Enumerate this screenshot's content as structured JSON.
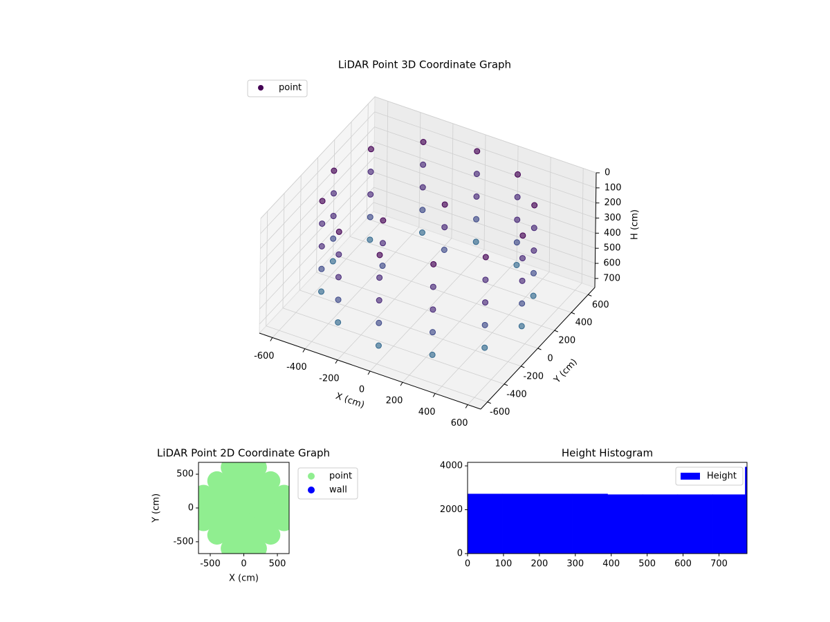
{
  "chart_data": [
    {
      "type": "scatter3d",
      "title": "LiDAR Point 3D Coordinate Graph",
      "xlabel": "X (cm)",
      "ylabel": "Y (cm)",
      "zlabel": "H (cm)",
      "series": [
        {
          "name": "point",
          "color": "#440154",
          "colormap": "viridis",
          "x": [
            580,
            502,
            290,
            0,
            -290,
            -502,
            -580,
            -502,
            -290,
            0,
            290,
            502,
            580,
            502,
            290,
            0,
            -290,
            -502,
            -580,
            -502,
            -290,
            0,
            290,
            502,
            580,
            502,
            290,
            0,
            -290,
            -502,
            -580,
            -502,
            -290,
            0,
            290,
            502,
            580,
            502,
            290,
            0,
            -290,
            -502,
            -580,
            -502,
            -290,
            0,
            290,
            502,
            580,
            502,
            290,
            0,
            -290,
            -502,
            -580,
            -502,
            -290,
            0,
            290,
            502,
            50,
            50,
            50,
            -200,
            -200,
            -200
          ],
          "y": [
            0,
            290,
            502,
            580,
            502,
            290,
            0,
            -290,
            -502,
            -580,
            -502,
            -290,
            0,
            290,
            502,
            580,
            502,
            290,
            0,
            -290,
            -502,
            -580,
            -502,
            -290,
            0,
            290,
            502,
            580,
            502,
            290,
            0,
            -290,
            -502,
            -580,
            -502,
            -290,
            0,
            290,
            502,
            580,
            502,
            290,
            0,
            -290,
            -502,
            -580,
            -502,
            -290,
            0,
            290,
            502,
            580,
            502,
            290,
            0,
            -290,
            -502,
            -580,
            -502,
            -290,
            100,
            100,
            100,
            -150,
            -150,
            -150
          ],
          "z": [
            50,
            50,
            50,
            50,
            50,
            50,
            50,
            50,
            50,
            50,
            50,
            50,
            200,
            200,
            200,
            200,
            200,
            200,
            200,
            200,
            200,
            200,
            200,
            200,
            350,
            350,
            350,
            350,
            350,
            350,
            350,
            350,
            350,
            350,
            350,
            350,
            500,
            500,
            500,
            500,
            500,
            500,
            500,
            500,
            500,
            500,
            500,
            500,
            650,
            650,
            650,
            650,
            650,
            650,
            650,
            650,
            650,
            650,
            650,
            650,
            100,
            250,
            400,
            150,
            300,
            450
          ]
        }
      ],
      "xlim": [
        -680,
        680
      ],
      "ylim": [
        -680,
        680
      ],
      "zlim": [
        0,
        760
      ],
      "z_inverted": true,
      "xticks": [
        -600,
        -400,
        -200,
        0,
        200,
        400,
        600
      ],
      "yticks": [
        -600,
        -400,
        -200,
        0,
        200,
        400,
        600
      ],
      "zticks": [
        0,
        100,
        200,
        300,
        400,
        500,
        600,
        700
      ],
      "grid": true,
      "legend": "upper left"
    },
    {
      "type": "scatter",
      "title": "LiDAR Point 2D Coordinate Graph",
      "xlabel": "X (cm)",
      "ylabel": "Y (cm)",
      "series": [
        {
          "name": "point",
          "color": "#90ee90",
          "x": [
            -600,
            -600,
            -600,
            -400,
            -400,
            -400,
            -400,
            -400,
            -200,
            -200,
            -200,
            -200,
            -200,
            -200,
            -200,
            0,
            0,
            0,
            0,
            0,
            0,
            0,
            200,
            200,
            200,
            200,
            200,
            200,
            200,
            400,
            400,
            400,
            400,
            400,
            600,
            600,
            600
          ],
          "y": [
            -200,
            0,
            200,
            -400,
            -200,
            0,
            200,
            400,
            -600,
            -400,
            -200,
            0,
            200,
            400,
            600,
            -600,
            -400,
            -200,
            0,
            200,
            400,
            600,
            -600,
            -400,
            -200,
            0,
            200,
            400,
            600,
            -400,
            -200,
            0,
            200,
            400,
            -200,
            0,
            200
          ]
        },
        {
          "name": "wall",
          "color": "#0000ff",
          "x": [],
          "y": []
        }
      ],
      "xlim": [
        -675,
        675
      ],
      "ylim": [
        -675,
        675
      ],
      "xticks": [
        -500,
        0,
        500
      ],
      "yticks": [
        -500,
        0,
        500
      ],
      "legend": "outside right"
    },
    {
      "type": "histogram",
      "title": "Height Histogram",
      "bins": [
        0,
        97.5,
        195,
        292.5,
        390,
        487.5,
        585,
        682.5,
        773,
        778
      ],
      "series": [
        {
          "name": "Height",
          "color": "#0000ff",
          "values": [
            2720,
            2720,
            2720,
            2720,
            2690,
            2690,
            2690,
            2690,
            3950
          ]
        }
      ],
      "xlim": [
        0,
        778
      ],
      "ylim": [
        0,
        4160
      ],
      "xticks": [
        0,
        100,
        200,
        300,
        400,
        500,
        600,
        700
      ],
      "yticks": [
        0,
        2000,
        4000
      ],
      "legend": "upper right"
    }
  ]
}
